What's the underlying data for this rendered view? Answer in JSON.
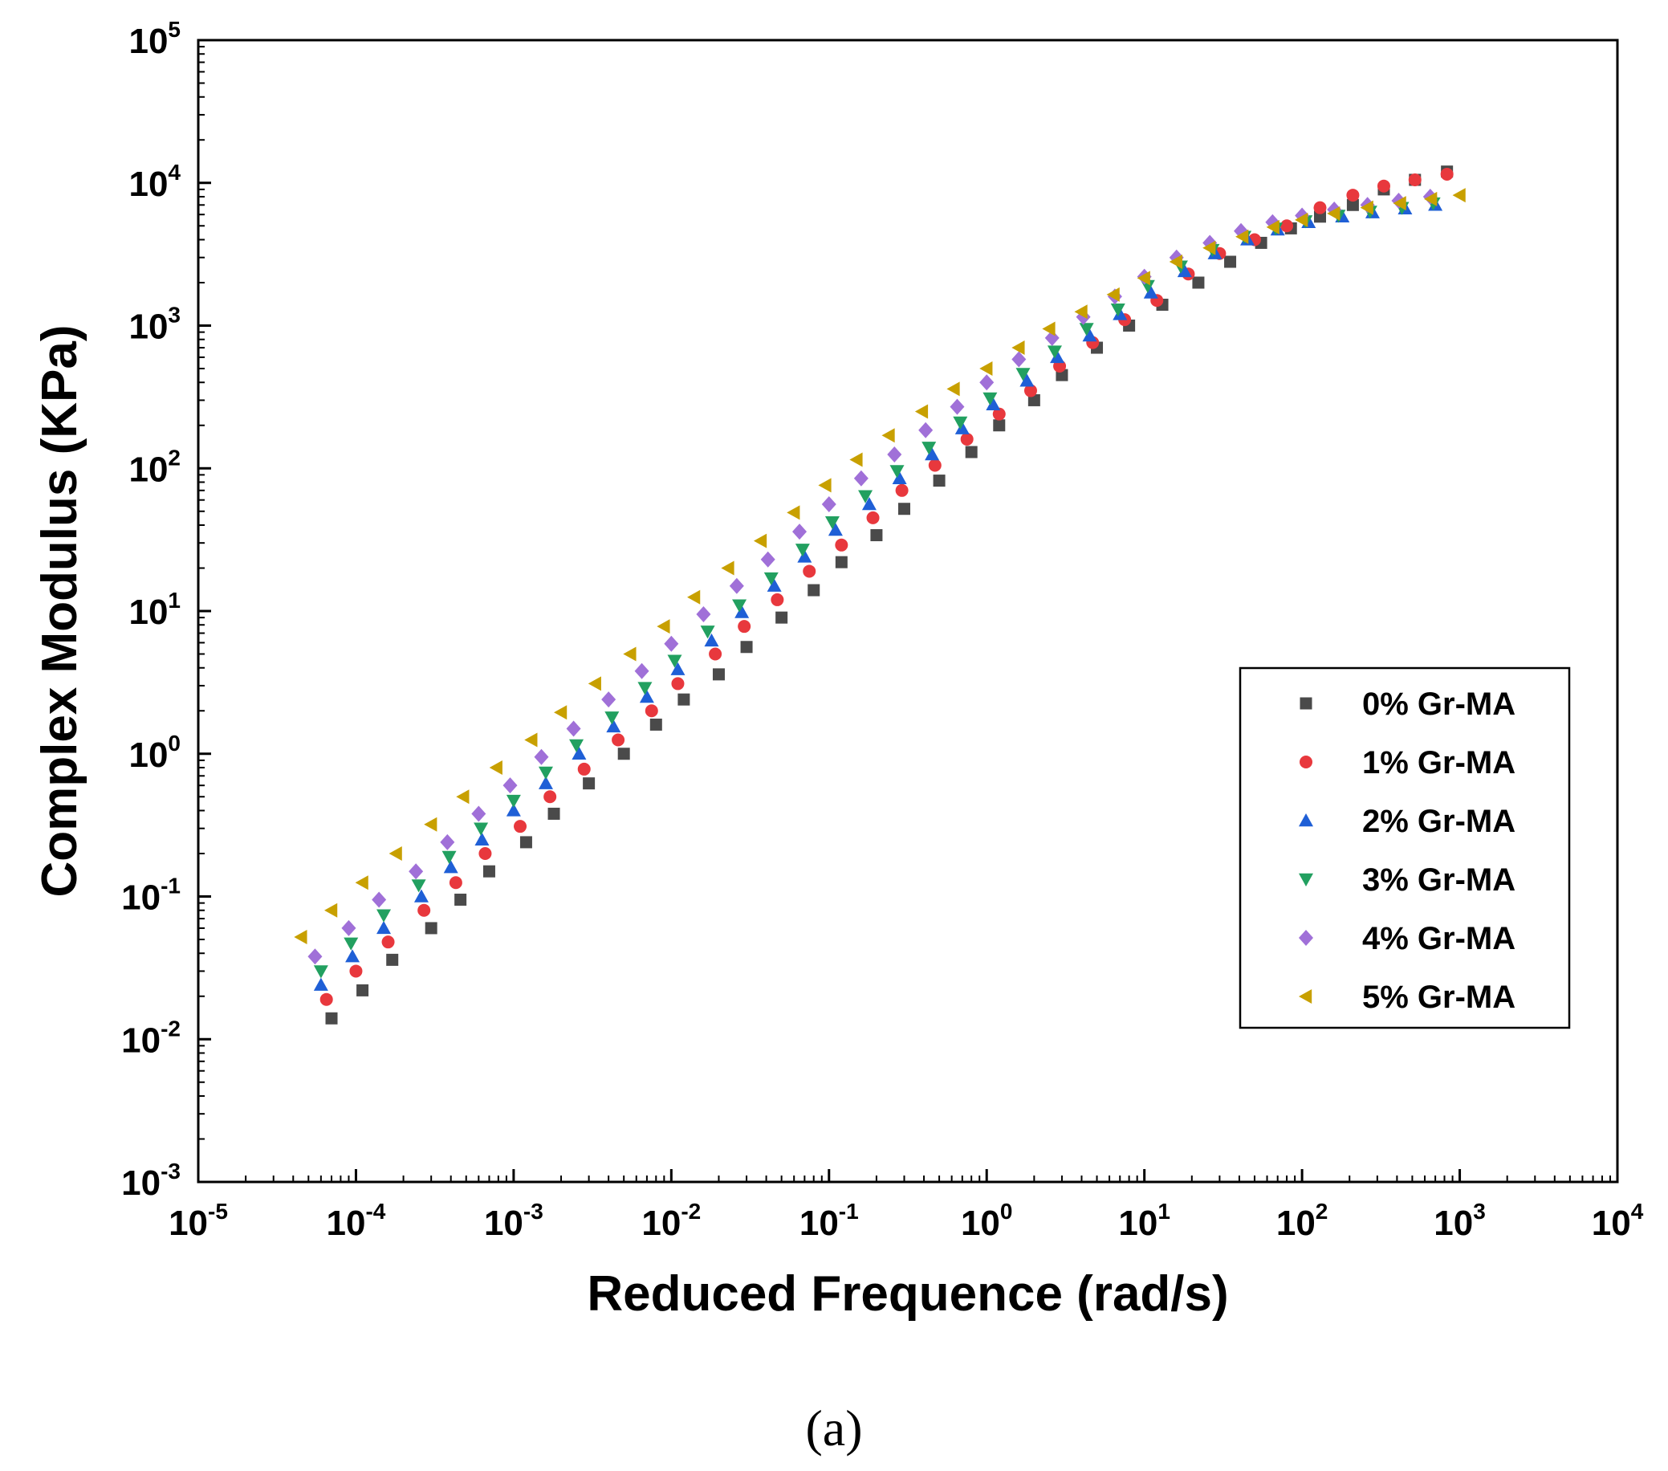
{
  "chart_data": {
    "type": "scatter",
    "xscale": "log",
    "yscale": "log",
    "xlabel": "Reduced Frequence (rad/s)",
    "ylabel": "Complex Modulus (KPa)",
    "xlim": [
      1e-05,
      10000
    ],
    "ylim": [
      0.001,
      100000
    ],
    "x_ticks": [
      {
        "base": "10",
        "exp": "-5"
      },
      {
        "base": "10",
        "exp": "-4"
      },
      {
        "base": "10",
        "exp": "-3"
      },
      {
        "base": "10",
        "exp": "-2"
      },
      {
        "base": "10",
        "exp": "-1"
      },
      {
        "base": "10",
        "exp": "0"
      },
      {
        "base": "10",
        "exp": "1"
      },
      {
        "base": "10",
        "exp": "2"
      },
      {
        "base": "10",
        "exp": "3"
      },
      {
        "base": "10",
        "exp": "4"
      }
    ],
    "y_ticks": [
      {
        "base": "10",
        "exp": "-3"
      },
      {
        "base": "10",
        "exp": "-2"
      },
      {
        "base": "10",
        "exp": "-1"
      },
      {
        "base": "10",
        "exp": "0"
      },
      {
        "base": "10",
        "exp": "1"
      },
      {
        "base": "10",
        "exp": "2"
      },
      {
        "base": "10",
        "exp": "3"
      },
      {
        "base": "10",
        "exp": "4"
      },
      {
        "base": "10",
        "exp": "5"
      }
    ],
    "grid": false,
    "legend_position": "right",
    "series": [
      {
        "name": "0% Gr-MA",
        "marker": "square",
        "color": "#4a4a4a",
        "x": [
          7e-05,
          0.00011,
          0.00017,
          0.0003,
          0.00046,
          0.0007,
          0.0012,
          0.0018,
          0.003,
          0.005,
          0.008,
          0.012,
          0.02,
          0.03,
          0.05,
          0.08,
          0.12,
          0.2,
          0.3,
          0.5,
          0.8,
          1.2,
          2.0,
          3.0,
          5.0,
          8.0,
          13,
          22,
          35,
          55,
          85,
          130,
          210,
          330,
          520,
          830
        ],
        "y": [
          0.014,
          0.022,
          0.036,
          0.06,
          0.095,
          0.15,
          0.24,
          0.38,
          0.62,
          1.0,
          1.6,
          2.4,
          3.6,
          5.6,
          9.0,
          14,
          22,
          34,
          52,
          82,
          130,
          200,
          300,
          450,
          700,
          1000,
          1400,
          2000,
          2800,
          3800,
          4800,
          5800,
          7000,
          9000,
          10500,
          12000
        ]
      },
      {
        "name": "1% Gr-MA",
        "marker": "circle",
        "color": "#e8383d",
        "x": [
          6.5e-05,
          0.0001,
          0.00016,
          0.00027,
          0.00043,
          0.00066,
          0.0011,
          0.0017,
          0.0028,
          0.0046,
          0.0075,
          0.011,
          0.019,
          0.029,
          0.047,
          0.075,
          0.12,
          0.19,
          0.29,
          0.47,
          0.75,
          1.2,
          1.9,
          2.9,
          4.7,
          7.5,
          12,
          19,
          30,
          50,
          80,
          130,
          210,
          330,
          520,
          830
        ],
        "y": [
          0.019,
          0.03,
          0.048,
          0.08,
          0.125,
          0.2,
          0.31,
          0.5,
          0.78,
          1.25,
          2.0,
          3.1,
          5.0,
          7.8,
          12,
          19,
          29,
          45,
          70,
          105,
          160,
          240,
          350,
          520,
          760,
          1100,
          1500,
          2300,
          3200,
          4000,
          5000,
          6700,
          8200,
          9500,
          10500,
          11500
        ]
      },
      {
        "name": "2% Gr-MA",
        "marker": "triangle-up",
        "color": "#1f5fd6",
        "x": [
          6e-05,
          9.5e-05,
          0.00015,
          0.00026,
          0.0004,
          0.00063,
          0.001,
          0.0016,
          0.0026,
          0.0043,
          0.007,
          0.011,
          0.018,
          0.028,
          0.045,
          0.07,
          0.11,
          0.18,
          0.28,
          0.45,
          0.7,
          1.1,
          1.8,
          2.8,
          4.5,
          7.0,
          11,
          18,
          28,
          45,
          70,
          110,
          180,
          280,
          450,
          700
        ],
        "y": [
          0.024,
          0.038,
          0.06,
          0.1,
          0.16,
          0.25,
          0.4,
          0.62,
          1.0,
          1.55,
          2.5,
          3.9,
          6.2,
          9.8,
          15,
          24,
          37,
          56,
          85,
          125,
          190,
          280,
          410,
          600,
          850,
          1200,
          1700,
          2400,
          3200,
          4000,
          4700,
          5300,
          5800,
          6200,
          6600,
          7000
        ]
      },
      {
        "name": "3% Gr-MA",
        "marker": "triangle-down",
        "color": "#22a060",
        "x": [
          6e-05,
          9.3e-05,
          0.00015,
          0.00025,
          0.00039,
          0.00062,
          0.001,
          0.0016,
          0.0025,
          0.0042,
          0.0068,
          0.0105,
          0.017,
          0.027,
          0.043,
          0.068,
          0.105,
          0.17,
          0.27,
          0.43,
          0.68,
          1.05,
          1.7,
          2.7,
          4.3,
          6.8,
          10.5,
          17,
          27,
          43,
          68,
          105,
          170,
          270,
          430,
          680
        ],
        "y": [
          0.03,
          0.047,
          0.074,
          0.12,
          0.19,
          0.3,
          0.47,
          0.74,
          1.15,
          1.8,
          2.9,
          4.5,
          7.2,
          11,
          17,
          27,
          42,
          64,
          96,
          140,
          210,
          310,
          460,
          660,
          950,
          1300,
          1900,
          2600,
          3400,
          4200,
          4800,
          5400,
          5900,
          6300,
          6700,
          7200
        ]
      },
      {
        "name": "4% Gr-MA",
        "marker": "diamond",
        "color": "#a070d8",
        "x": [
          5.5e-05,
          9e-05,
          0.00014,
          0.00024,
          0.00038,
          0.0006,
          0.00095,
          0.0015,
          0.0024,
          0.004,
          0.0065,
          0.01,
          0.016,
          0.026,
          0.041,
          0.065,
          0.1,
          0.16,
          0.26,
          0.41,
          0.65,
          1.0,
          1.6,
          2.6,
          4.1,
          6.5,
          10,
          16,
          26,
          41,
          65,
          100,
          160,
          260,
          410,
          650
        ],
        "y": [
          0.038,
          0.06,
          0.095,
          0.15,
          0.24,
          0.38,
          0.6,
          0.95,
          1.5,
          2.4,
          3.8,
          5.9,
          9.5,
          15,
          23,
          36,
          56,
          85,
          125,
          185,
          270,
          400,
          580,
          820,
          1150,
          1600,
          2200,
          3000,
          3800,
          4600,
          5300,
          5900,
          6500,
          7000,
          7500,
          8000
        ]
      },
      {
        "name": "5% Gr-MA",
        "marker": "triangle-left",
        "color": "#c8a000",
        "x": [
          4.5e-05,
          7e-05,
          0.00011,
          0.00018,
          0.0003,
          0.00048,
          0.00078,
          0.0013,
          0.002,
          0.0033,
          0.0055,
          0.009,
          0.014,
          0.023,
          0.037,
          0.06,
          0.095,
          0.15,
          0.24,
          0.39,
          0.62,
          1.0,
          1.6,
          2.5,
          4.0,
          6.4,
          10,
          16,
          26,
          42,
          66,
          100,
          160,
          260,
          420,
          660,
          1000
        ],
        "y": [
          0.052,
          0.08,
          0.125,
          0.2,
          0.32,
          0.5,
          0.8,
          1.25,
          1.95,
          3.1,
          5.0,
          7.8,
          12.5,
          20,
          31,
          49,
          76,
          115,
          170,
          250,
          360,
          500,
          700,
          950,
          1250,
          1650,
          2150,
          2800,
          3500,
          4200,
          4900,
          5500,
          6100,
          6700,
          7200,
          7700,
          8200
        ]
      }
    ]
  },
  "caption": "(a)"
}
